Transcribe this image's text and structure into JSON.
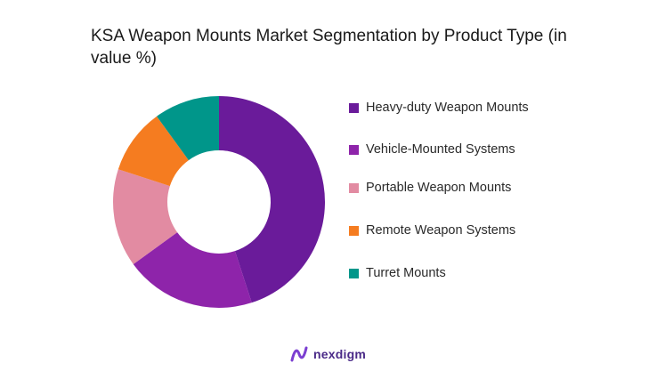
{
  "chart_data": {
    "type": "pie",
    "title": "KSA Weapon Mounts Market Segmentation by Product Type (in value %)",
    "categories": [
      "Heavy-duty Weapon Mounts",
      "Vehicle-Mounted Systems",
      "Portable Weapon Mounts",
      "Remote Weapon Systems",
      "Turret Mounts"
    ],
    "values": [
      45,
      20,
      15,
      10,
      10
    ],
    "colors": [
      "#6a1b9a",
      "#8e24aa",
      "#e28ba2",
      "#f57c20",
      "#00968a"
    ],
    "donut": true,
    "legend_position": "right"
  },
  "logo": {
    "text": "nexdigm",
    "icon": "nexdigm-logo-icon"
  }
}
